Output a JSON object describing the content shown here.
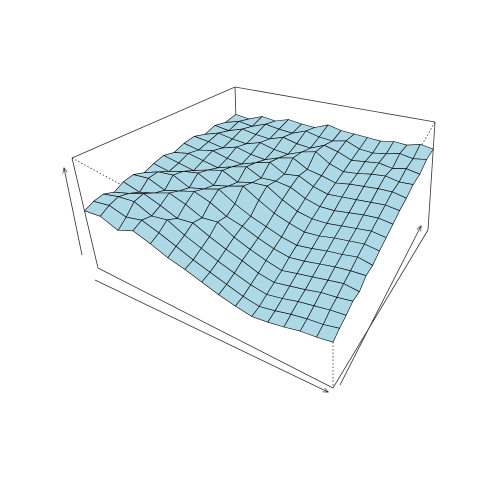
{
  "chart_data": {
    "type": "surface",
    "color": "#add8e6",
    "zlim": [
      0,
      1
    ],
    "z": [
      [
        0.52,
        0.55,
        0.5,
        0.58,
        0.54,
        0.49,
        0.46,
        0.42,
        0.38,
        0.35,
        0.33,
        0.36,
        0.4,
        0.45,
        0.48,
        0.52
      ],
      [
        0.56,
        0.6,
        0.57,
        0.62,
        0.58,
        0.53,
        0.48,
        0.44,
        0.4,
        0.36,
        0.34,
        0.38,
        0.43,
        0.47,
        0.5,
        0.55
      ],
      [
        0.58,
        0.63,
        0.66,
        0.6,
        0.64,
        0.57,
        0.52,
        0.47,
        0.43,
        0.39,
        0.37,
        0.41,
        0.46,
        0.5,
        0.54,
        0.57
      ],
      [
        0.55,
        0.61,
        0.68,
        0.64,
        0.59,
        0.62,
        0.56,
        0.51,
        0.47,
        0.42,
        0.4,
        0.44,
        0.48,
        0.53,
        0.56,
        0.6
      ],
      [
        0.6,
        0.57,
        0.63,
        0.7,
        0.66,
        0.6,
        0.63,
        0.55,
        0.5,
        0.46,
        0.43,
        0.47,
        0.51,
        0.55,
        0.59,
        0.58
      ],
      [
        0.62,
        0.65,
        0.6,
        0.66,
        0.72,
        0.68,
        0.61,
        0.58,
        0.53,
        0.49,
        0.47,
        0.5,
        0.54,
        0.58,
        0.61,
        0.63
      ],
      [
        0.59,
        0.66,
        0.69,
        0.63,
        0.68,
        0.74,
        0.66,
        0.6,
        0.56,
        0.52,
        0.5,
        0.53,
        0.57,
        0.6,
        0.64,
        0.62
      ],
      [
        0.63,
        0.61,
        0.67,
        0.71,
        0.65,
        0.7,
        0.76,
        0.68,
        0.61,
        0.57,
        0.54,
        0.56,
        0.6,
        0.63,
        0.66,
        0.65
      ],
      [
        0.66,
        0.64,
        0.62,
        0.68,
        0.73,
        0.67,
        0.72,
        0.74,
        0.66,
        0.6,
        0.58,
        0.59,
        0.62,
        0.65,
        0.68,
        0.67
      ],
      [
        0.64,
        0.68,
        0.66,
        0.64,
        0.7,
        0.75,
        0.69,
        0.71,
        0.7,
        0.64,
        0.61,
        0.62,
        0.65,
        0.68,
        0.7,
        0.69
      ],
      [
        0.68,
        0.66,
        0.7,
        0.67,
        0.66,
        0.72,
        0.77,
        0.7,
        0.73,
        0.67,
        0.64,
        0.66,
        0.68,
        0.7,
        0.72,
        0.71
      ],
      [
        0.7,
        0.69,
        0.67,
        0.72,
        0.69,
        0.68,
        0.74,
        0.78,
        0.71,
        0.69,
        0.66,
        0.69,
        0.71,
        0.73,
        0.74,
        0.72
      ],
      [
        0.67,
        0.72,
        0.7,
        0.69,
        0.74,
        0.71,
        0.7,
        0.76,
        0.8,
        0.72,
        0.68,
        0.7,
        0.73,
        0.75,
        0.73,
        0.74
      ],
      [
        0.71,
        0.69,
        0.74,
        0.72,
        0.71,
        0.76,
        0.73,
        0.72,
        0.78,
        0.75,
        0.7,
        0.72,
        0.74,
        0.72,
        0.75,
        0.73
      ],
      [
        0.69,
        0.73,
        0.71,
        0.76,
        0.74,
        0.73,
        0.78,
        0.75,
        0.74,
        0.77,
        0.72,
        0.71,
        0.73,
        0.76,
        0.74,
        0.76
      ],
      [
        0.72,
        0.7,
        0.75,
        0.73,
        0.77,
        0.75,
        0.74,
        0.79,
        0.76,
        0.75,
        0.74,
        0.73,
        0.75,
        0.74,
        0.77,
        0.75
      ]
    ]
  }
}
